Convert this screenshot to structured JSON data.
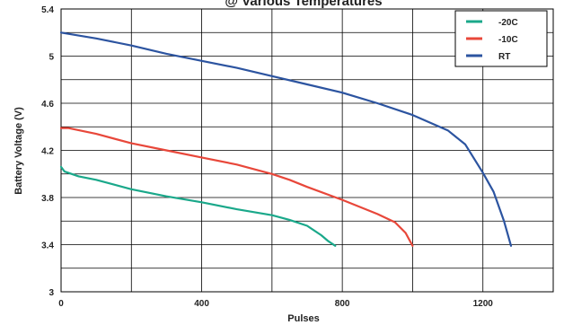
{
  "chart_data": {
    "type": "line",
    "title": "@ Various Temperatures",
    "xlabel": "Pulses",
    "ylabel": "Battery Voltage (V)",
    "xlim": [
      0,
      1400
    ],
    "ylim": [
      3,
      5.4
    ],
    "x_ticks": [
      0,
      400,
      800,
      1200
    ],
    "y_ticks": [
      3,
      3.4,
      3.8,
      4.2,
      4.6,
      5,
      5.4
    ],
    "x_tick_labels": [
      "0",
      "400",
      "800",
      "1200"
    ],
    "y_tick_labels": [
      "3",
      "3.4",
      "3.8",
      "4.2",
      "4.6",
      "5",
      "5.4"
    ],
    "grid": true,
    "legend_position": "top-right",
    "series": [
      {
        "name": "-20C",
        "color": "#1aa88a",
        "points": [
          [
            0,
            4.06
          ],
          [
            10,
            4.02
          ],
          [
            50,
            3.98
          ],
          [
            100,
            3.95
          ],
          [
            200,
            3.87
          ],
          [
            300,
            3.81
          ],
          [
            400,
            3.76
          ],
          [
            500,
            3.7
          ],
          [
            600,
            3.65
          ],
          [
            650,
            3.61
          ],
          [
            700,
            3.56
          ],
          [
            740,
            3.48
          ],
          [
            760,
            3.43
          ],
          [
            780,
            3.39
          ]
        ]
      },
      {
        "name": "-10C",
        "color": "#e8473a",
        "points": [
          [
            0,
            4.39
          ],
          [
            20,
            4.39
          ],
          [
            100,
            4.34
          ],
          [
            200,
            4.26
          ],
          [
            300,
            4.2
          ],
          [
            400,
            4.14
          ],
          [
            500,
            4.08
          ],
          [
            600,
            4.0
          ],
          [
            650,
            3.95
          ],
          [
            700,
            3.89
          ],
          [
            800,
            3.78
          ],
          [
            900,
            3.66
          ],
          [
            950,
            3.59
          ],
          [
            980,
            3.5
          ],
          [
            1000,
            3.39
          ]
        ]
      },
      {
        "name": "RT",
        "color": "#2c54a0",
        "points": [
          [
            0,
            5.2
          ],
          [
            100,
            5.15
          ],
          [
            200,
            5.09
          ],
          [
            300,
            5.02
          ],
          [
            400,
            4.96
          ],
          [
            500,
            4.9
          ],
          [
            600,
            4.83
          ],
          [
            700,
            4.76
          ],
          [
            800,
            4.69
          ],
          [
            900,
            4.6
          ],
          [
            1000,
            4.5
          ],
          [
            1100,
            4.37
          ],
          [
            1150,
            4.25
          ],
          [
            1200,
            4.01
          ],
          [
            1230,
            3.85
          ],
          [
            1260,
            3.6
          ],
          [
            1280,
            3.39
          ]
        ]
      }
    ]
  }
}
